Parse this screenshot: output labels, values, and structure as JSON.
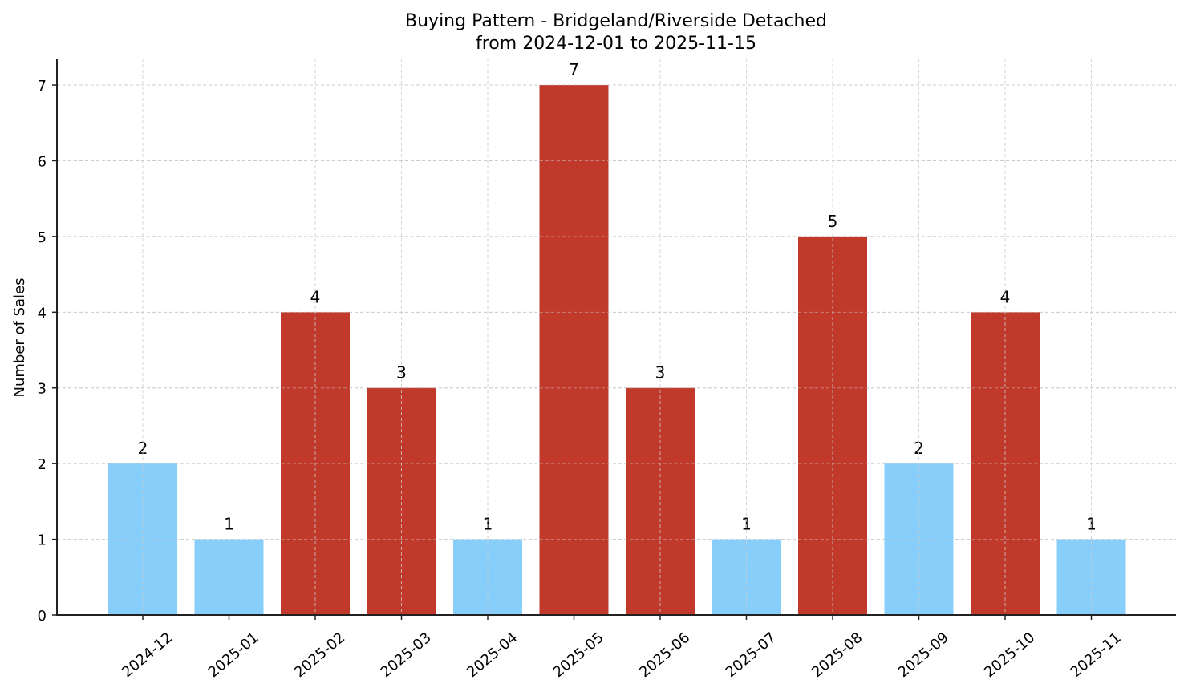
{
  "chart_data": {
    "type": "bar",
    "title": "Buying Pattern - Bridgeland/Riverside Detached",
    "subtitle": "from 2024-12-01 to 2025-11-15",
    "xlabel": "",
    "ylabel": "Number of Sales",
    "categories": [
      "2024-12",
      "2025-01",
      "2025-02",
      "2025-03",
      "2025-04",
      "2025-05",
      "2025-06",
      "2025-07",
      "2025-08",
      "2025-09",
      "2025-10",
      "2025-11"
    ],
    "values": [
      2,
      1,
      4,
      3,
      1,
      7,
      3,
      1,
      5,
      2,
      4,
      1
    ],
    "bar_colors": [
      "#87CEFA",
      "#87CEFA",
      "#C0392B",
      "#C0392B",
      "#87CEFA",
      "#C0392B",
      "#C0392B",
      "#87CEFA",
      "#C0392B",
      "#87CEFA",
      "#C0392B",
      "#87CEFA"
    ],
    "color_scheme": {
      "high": "#C0392B",
      "low": "#87CEFA"
    },
    "ylim": [
      0,
      7.35
    ],
    "yticks": [
      0,
      1,
      2,
      3,
      4,
      5,
      6,
      7
    ],
    "grid": true,
    "legend": null,
    "data_labels": true
  }
}
